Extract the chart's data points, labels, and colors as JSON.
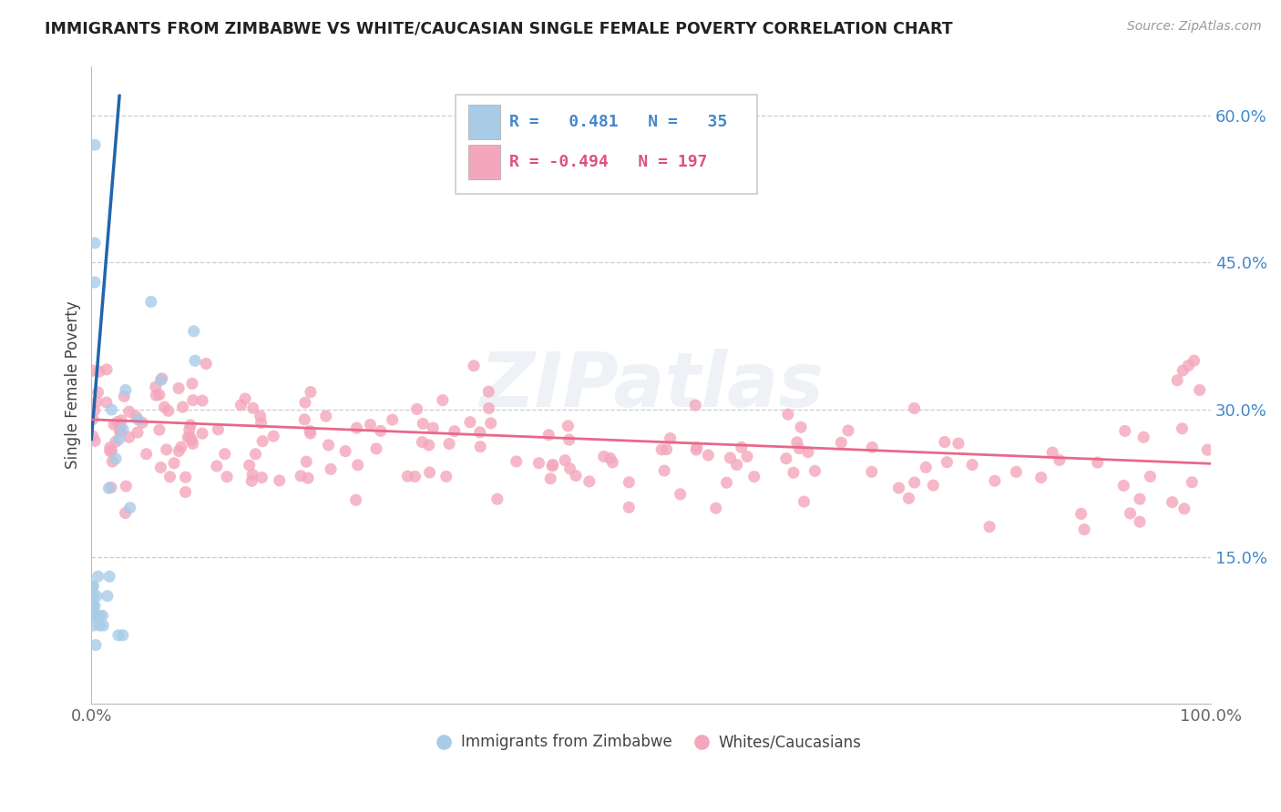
{
  "title": "IMMIGRANTS FROM ZIMBABWE VS WHITE/CAUCASIAN SINGLE FEMALE POVERTY CORRELATION CHART",
  "source_text": "Source: ZipAtlas.com",
  "ylabel": "Single Female Poverty",
  "watermark": "ZIPatlas",
  "legend": {
    "blue_label": "Immigrants from Zimbabwe",
    "pink_label": "Whites/Caucasians",
    "blue_R": "0.481",
    "blue_N": "35",
    "pink_R": "-0.494",
    "pink_N": "197"
  },
  "blue_color": "#a8cce8",
  "pink_color": "#f4a7bc",
  "blue_line_color": "#2166ac",
  "pink_line_color": "#e8688a",
  "xlim": [
    0.0,
    1.0
  ],
  "ylim": [
    0.0,
    0.65
  ],
  "y_ticks": [
    0.15,
    0.3,
    0.45,
    0.6
  ],
  "y_tick_labels": [
    "15.0%",
    "30.0%",
    "45.0%",
    "60.0%"
  ],
  "grid_color": "#cccccc",
  "background_color": "#ffffff",
  "title_color": "#222222",
  "axis_color": "#444444",
  "tick_color_blue": "#4488cc",
  "tick_color_axis": "#666666"
}
